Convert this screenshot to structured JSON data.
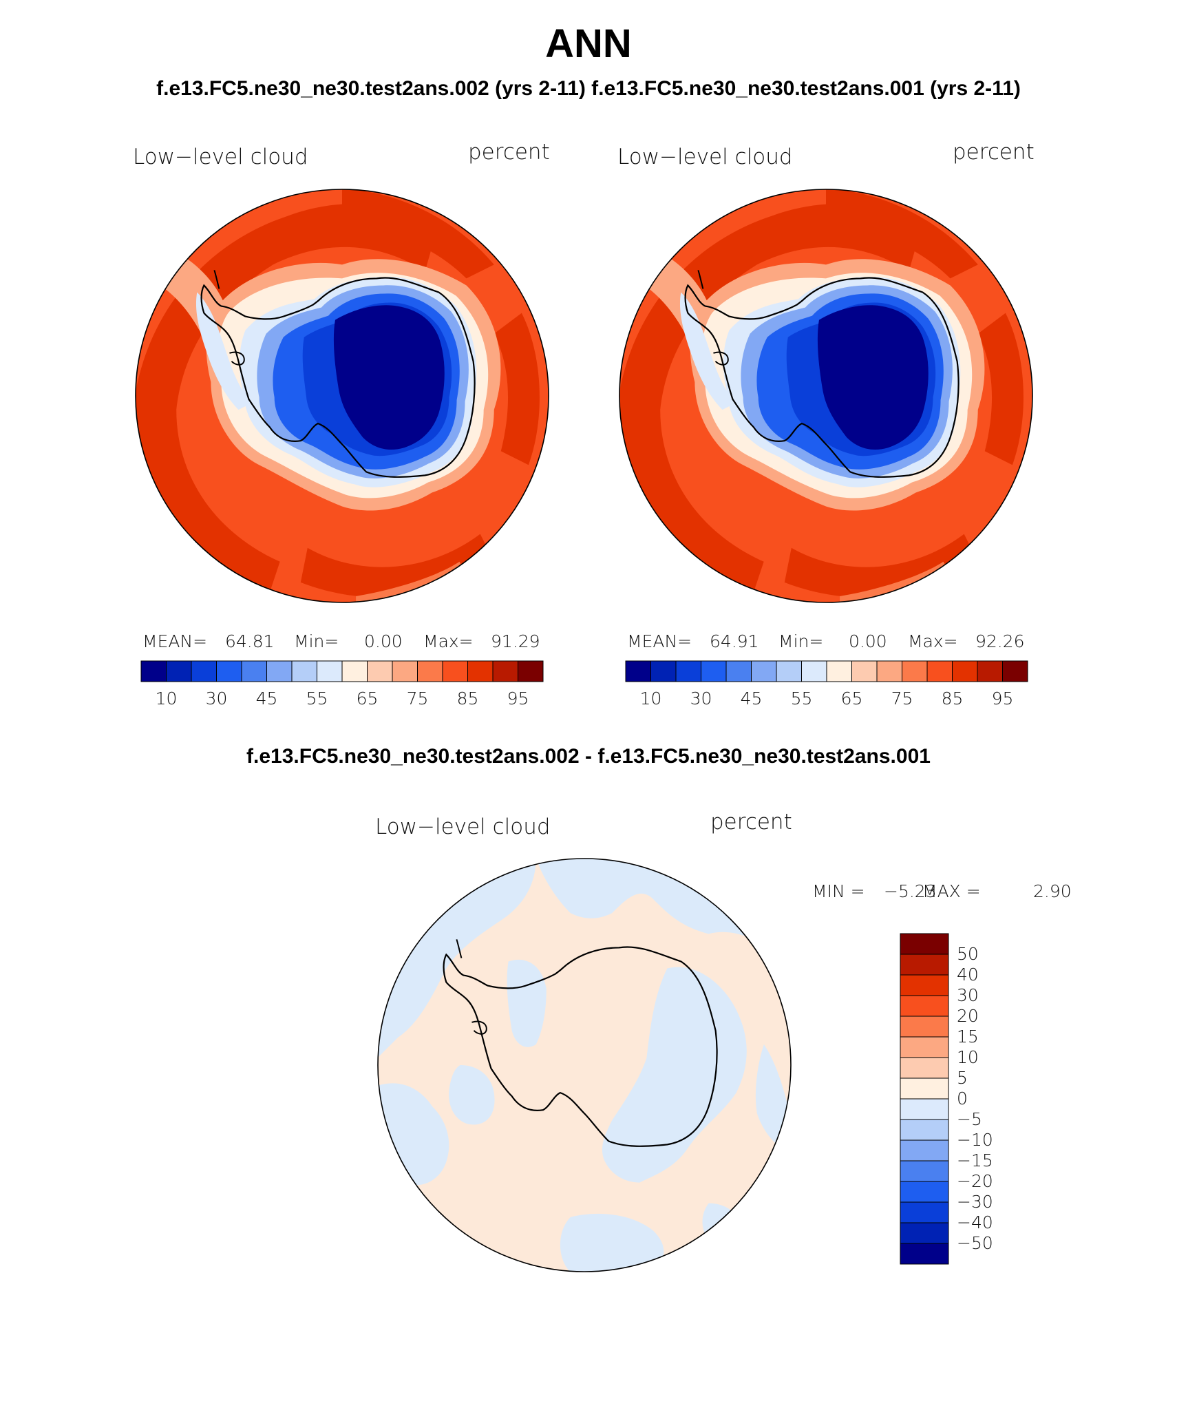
{
  "header": {
    "title": "ANN",
    "subtitle": "f.e13.FC5.ne30_ne30.test2ans.002 (yrs 2-11) f.e13.FC5.ne30_ne30.test2ans.001 (yrs 2-11)"
  },
  "panels": [
    {
      "variable": "Low−level cloud",
      "units": "percent",
      "stats": {
        "mean_label": "MEAN=",
        "mean": "64.81",
        "min_label": "Min=",
        "min": "0.00",
        "max_label": "Max=",
        "max": "91.29"
      },
      "colorbar": {
        "colors": [
          "#00008a",
          "#0022b4",
          "#0a3fd9",
          "#1e5ef0",
          "#4a80f0",
          "#82a8f4",
          "#b4cef8",
          "#dceafc",
          "#fff0e0",
          "#fdcbb0",
          "#fca882",
          "#fb7a4a",
          "#f8501e",
          "#e33200",
          "#b81a00",
          "#7a0000"
        ],
        "tick_labels": [
          "10",
          "30",
          "45",
          "55",
          "65",
          "75",
          "85",
          "95"
        ]
      }
    },
    {
      "variable": "Low−level cloud",
      "units": "percent",
      "stats": {
        "mean_label": "MEAN=",
        "mean": "64.91",
        "min_label": "Min=",
        "min": "0.00",
        "max_label": "Max=",
        "max": "92.26"
      },
      "colorbar": {
        "colors": [
          "#00008a",
          "#0022b4",
          "#0a3fd9",
          "#1e5ef0",
          "#4a80f0",
          "#82a8f4",
          "#b4cef8",
          "#dceafc",
          "#fff0e0",
          "#fdcbb0",
          "#fca882",
          "#fb7a4a",
          "#f8501e",
          "#e33200",
          "#b81a00",
          "#7a0000"
        ],
        "tick_labels": [
          "10",
          "30",
          "45",
          "55",
          "65",
          "75",
          "85",
          "95"
        ]
      }
    }
  ],
  "difference": {
    "subtitle": "f.e13.FC5.ne30_ne30.test2ans.002 - f.e13.FC5.ne30_ne30.test2ans.001",
    "variable": "Low−level cloud",
    "units": "percent",
    "stats": {
      "min_label": "MIN =",
      "min": "−5.23",
      "max_label": "MAX =",
      "max": "2.90"
    },
    "colorbar": {
      "colors_top_to_bottom": [
        "#7a0000",
        "#b81a00",
        "#e33200",
        "#f8501e",
        "#fb7a4a",
        "#fca882",
        "#fdcbb0",
        "#fff0e0",
        "#dceafc",
        "#b4cef8",
        "#82a8f4",
        "#4a80f0",
        "#1e5ef0",
        "#0a3fd9",
        "#0022b4",
        "#00008a"
      ],
      "tick_labels": [
        "50",
        "40",
        "30",
        "20",
        "15",
        "10",
        "5",
        "0",
        "−5",
        "−10",
        "−15",
        "−20",
        "−30",
        "−40",
        "−50"
      ]
    }
  }
}
